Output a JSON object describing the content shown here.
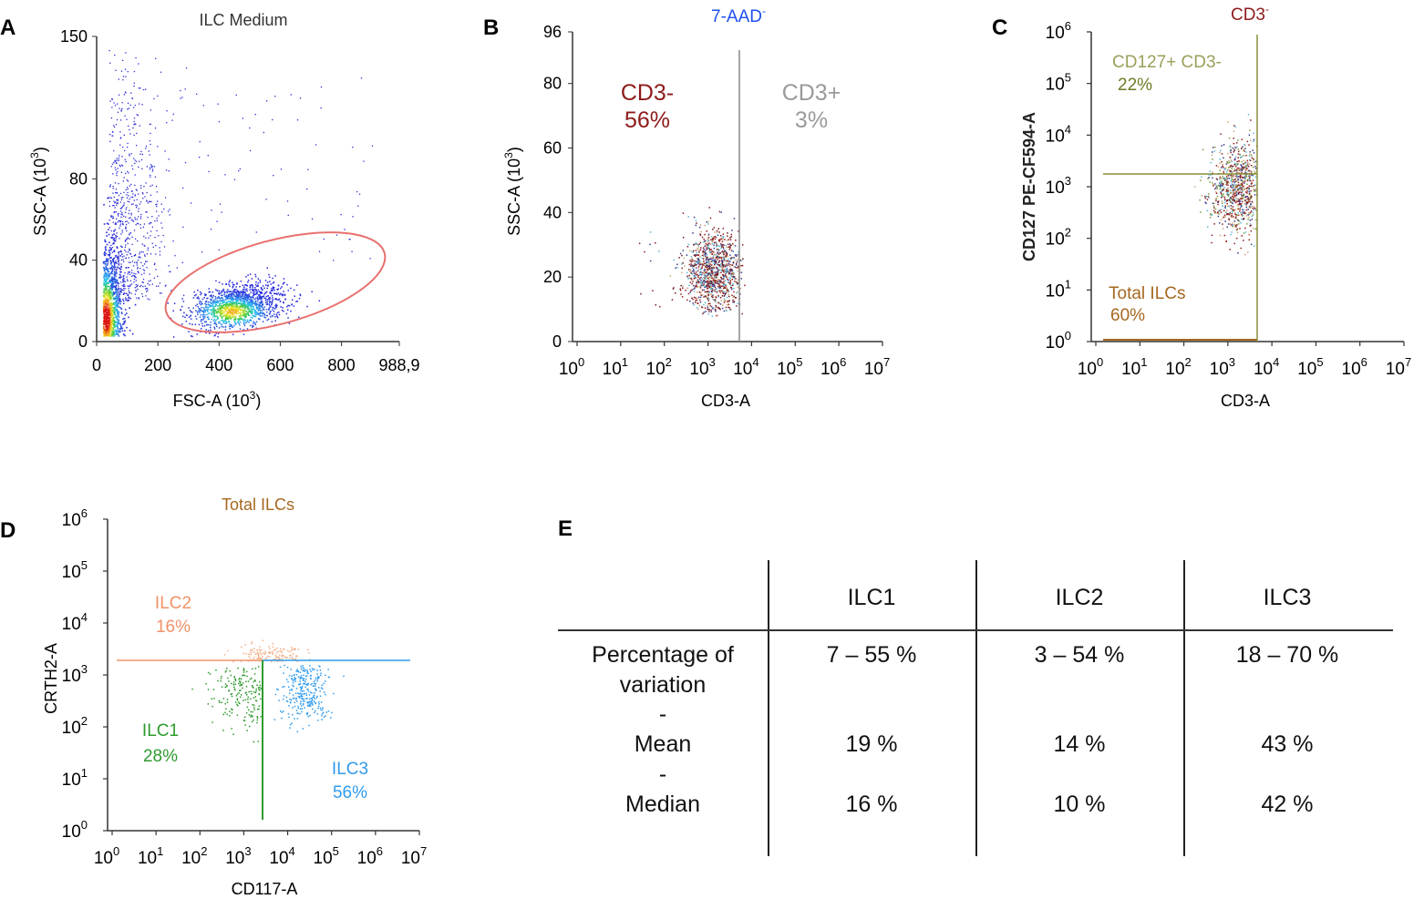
{
  "chart_data": [
    {
      "panel": "A",
      "type": "scatter",
      "title": "ILC Medium",
      "xlabel": "FSC-A",
      "xlabel_unit": "(10",
      "xlabel_exp": "3",
      "xlabel_close": ")",
      "ylabel": "SSC-A",
      "ylabel_unit": "(10",
      "ylabel_exp": "3",
      "ylabel_close": ")",
      "xscale": "linear",
      "xlim": [
        0,
        988.9
      ],
      "xticks": [
        0,
        200,
        400,
        600,
        800,
        988.9
      ],
      "xtick_labels": [
        "0",
        "200",
        "400",
        "600",
        "800",
        "988,9"
      ],
      "yscale": "linear",
      "ylim": [
        0,
        150
      ],
      "yticks": [
        0,
        40,
        80,
        150
      ],
      "ytick_labels": [
        "0",
        "40",
        "80",
        "150"
      ],
      "gate": {
        "shape": "ellipse",
        "color": "#e8706e",
        "center_x": 610,
        "center_y": 25,
        "x_extent": [
          230,
          960
        ],
        "y_extent": [
          0,
          55
        ]
      },
      "populations": [
        {
          "name": "debris",
          "color": "heat",
          "x_center": 40,
          "y_center": 18
        },
        {
          "name": "ILC gate",
          "color": "heat",
          "x_center": 470,
          "y_center": 18
        }
      ]
    },
    {
      "panel": "B",
      "type": "scatter",
      "title": "7-AAD",
      "title_sup": "-",
      "title_color": "#1e4ff0",
      "xlabel": "CD3-A",
      "ylabel": "SSC-A",
      "ylabel_unit": "(10",
      "ylabel_exp": "3",
      "ylabel_close": ")",
      "xscale": "log",
      "xlim_exp": [
        0,
        7
      ],
      "ylim": [
        0,
        96
      ],
      "yticks": [
        0,
        20,
        40,
        60,
        80,
        96
      ],
      "ytick_labels": [
        "0",
        "20",
        "40",
        "60",
        "80",
        "96"
      ],
      "gate_threshold_x_exp": 3.65,
      "gates": [
        {
          "label": "CD3-",
          "value": "56%",
          "color": "#8e1b1b"
        },
        {
          "label": "CD3+",
          "value": "3%",
          "color": "#9a9a9a"
        }
      ],
      "cluster": {
        "x_center_exp": 3.1,
        "y_center": 22
      }
    },
    {
      "panel": "C",
      "type": "scatter",
      "title": "CD3",
      "title_sup": "-",
      "title_color": "#8e1b1b",
      "xlabel": "CD3-A",
      "ylabel": "CD127 PE-CF594-A",
      "xscale": "log",
      "xlim_exp": [
        0,
        7
      ],
      "yscale": "log",
      "ylim_exp": [
        0,
        6
      ],
      "gate_threshold_x_exp": 3.65,
      "gate_threshold_y_exp": 3.15,
      "gates": [
        {
          "label": "CD127+ CD3-",
          "value": "22%",
          "label_color": "#9b9f5a",
          "value_color": "#6d7a25"
        },
        {
          "label": "Total ILCs",
          "value": "60%",
          "color": "#a6671f"
        }
      ],
      "cluster": {
        "x_center_exp": 3.2,
        "y_center_exp": 3.0
      }
    },
    {
      "panel": "D",
      "type": "scatter",
      "title": "Total ILCs",
      "title_color": "#a6671f",
      "xlabel": "CD117-A",
      "ylabel": "CRTH2-A",
      "xscale": "log",
      "xlim_exp": [
        0,
        7
      ],
      "yscale": "log",
      "ylim_exp": [
        0,
        6
      ],
      "gate_threshold_x_exp": 3.4,
      "gate_threshold_y_exp": 3.25,
      "gates": [
        {
          "label": "ILC2",
          "value": "16%",
          "color": "#f0936a"
        },
        {
          "label": "ILC1",
          "value": "28%",
          "color": "#2e9a2e"
        },
        {
          "label": "ILC3",
          "value": "56%",
          "color": "#2f9bec"
        }
      ]
    }
  ],
  "panel_labels": [
    "A",
    "B",
    "C",
    "D",
    "E"
  ],
  "table": {
    "columns": [
      "ILC1",
      "ILC2",
      "ILC3"
    ],
    "row_labels": [
      "Percentage of",
      "variation",
      "-",
      "Mean",
      "-",
      "Median"
    ],
    "percentage_of_variation": [
      "7 – 55 %",
      "3 – 54 %",
      "18 – 70 %"
    ],
    "mean": [
      "19 %",
      "14 %",
      "43 %"
    ],
    "median": [
      "16 %",
      "10 %",
      "42 %"
    ]
  }
}
